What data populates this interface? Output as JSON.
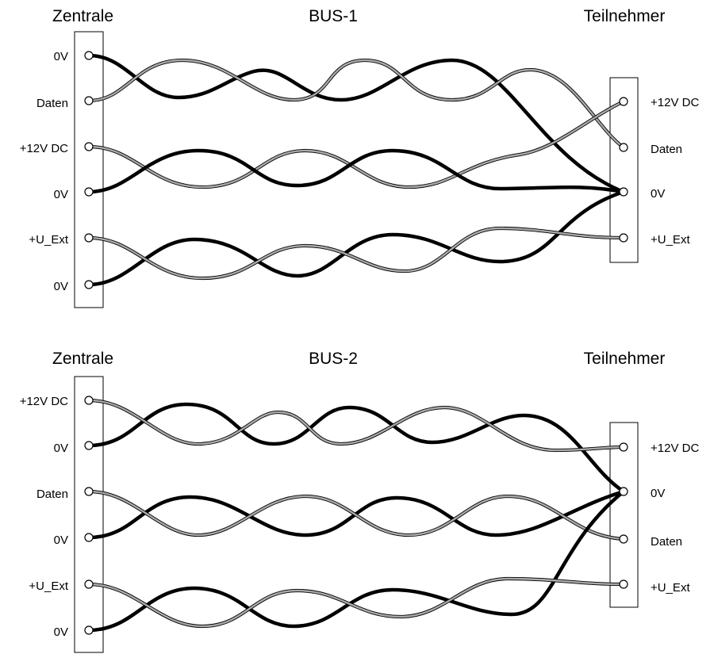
{
  "bus1": {
    "title": "BUS-1",
    "left_title": "Zentrale",
    "right_title": "Teilnehmer",
    "left_pins": [
      "0V",
      "Daten",
      "+12V DC",
      "0V",
      "+U_Ext",
      "0V"
    ],
    "right_pins": [
      "+12V DC",
      "Daten",
      "0V",
      "+U_Ext"
    ]
  },
  "bus2": {
    "title": "BUS-2",
    "left_title": "Zentrale",
    "right_title": "Teilnehmer",
    "left_pins": [
      "+12V DC",
      "0V",
      "Daten",
      "0V",
      "+U_Ext",
      "0V"
    ],
    "right_pins": [
      "+12V DC",
      "0V",
      "Daten",
      "+U_Ext"
    ]
  },
  "colors": {
    "ground_wire": "#000000",
    "signal_wire": "#aaaaaa"
  }
}
